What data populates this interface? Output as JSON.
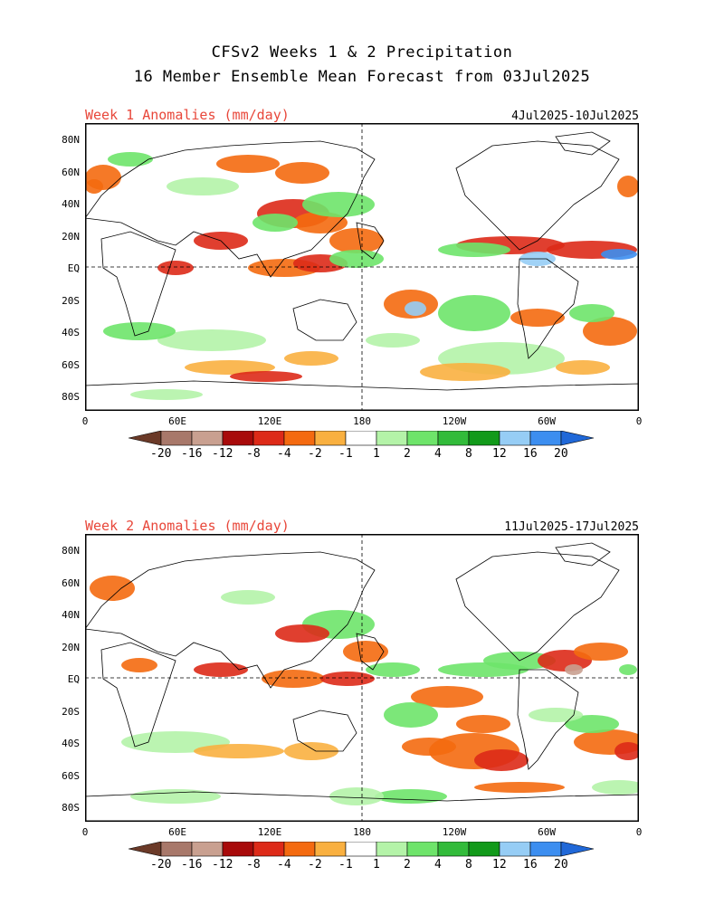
{
  "titles": {
    "line1": "CFSv2 Weeks 1 & 2 Precipitation",
    "line2": "16 Member Ensemble Mean Forecast from 03Jul2025"
  },
  "panels": [
    {
      "title": "Week 1 Anomalies (mm/day)",
      "date_range": "4Jul2025-10Jul2025"
    },
    {
      "title": "Week 2 Anomalies (mm/day)",
      "date_range": "11Jul2025-17Jul2025"
    }
  ],
  "axes": {
    "lat_labels": [
      "80N",
      "60N",
      "40N",
      "20N",
      "EQ",
      "20S",
      "40S",
      "60S",
      "80S"
    ],
    "lon_labels": [
      "0",
      "60E",
      "120E",
      "180",
      "120W",
      "60W",
      "0"
    ]
  },
  "colorbar": {
    "labels": [
      "-20",
      "-16",
      "-12",
      "-8",
      "-4",
      "-2",
      "-1",
      "1",
      "2",
      "4",
      "8",
      "12",
      "16",
      "20"
    ],
    "colors": [
      "#6b3a28",
      "#a8786a",
      "#c9a090",
      "#a80a0a",
      "#dd2a18",
      "#f46a10",
      "#f9b040",
      "#ffffff",
      "#b4f3a8",
      "#6ee46a",
      "#32bb3a",
      "#129a1a",
      "#96cdf5",
      "#3c8ef0",
      "#2068d8"
    ]
  },
  "legend_colors": {
    "title_red": "#e8473a",
    "land_outline": "#000000"
  }
}
